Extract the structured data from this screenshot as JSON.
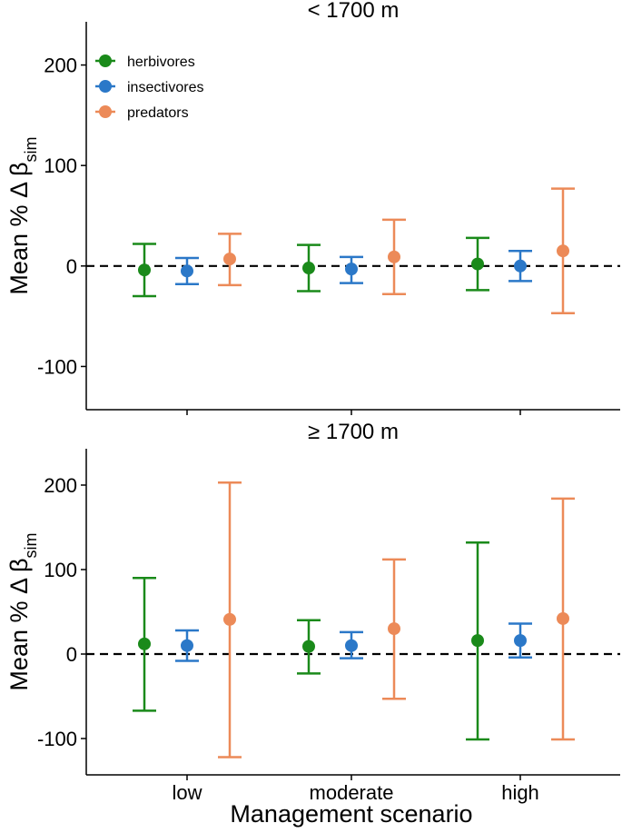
{
  "chart_data": {
    "type": "scatter",
    "subtype": "point-with-error-bars",
    "xlabel": "Management scenario",
    "categories": [
      "low",
      "moderate",
      "high"
    ],
    "reference_line": {
      "y": 0,
      "style": "dashed"
    },
    "legend": {
      "position": "top-left",
      "entries": [
        {
          "name": "herbivores",
          "color": "#1a8a1a"
        },
        {
          "name": "insectivores",
          "color": "#2b78c8"
        },
        {
          "name": "predators",
          "color": "#ec8a58"
        }
      ]
    },
    "panels": [
      {
        "title": "< 1700 m",
        "ylabel_main": "Mean % Δ β",
        "ylabel_sub": "sim",
        "ylim": [
          -143,
          243
        ],
        "yticks": [
          -100,
          0,
          100,
          200
        ],
        "series": [
          {
            "name": "herbivores",
            "color": "#1a8a1a",
            "mean": [
              -4,
              -2,
              2
            ],
            "lower": [
              -30,
              -25,
              -24
            ],
            "upper": [
              22,
              21,
              28
            ]
          },
          {
            "name": "insectivores",
            "color": "#2b78c8",
            "mean": [
              -5,
              -3,
              0
            ],
            "lower": [
              -18,
              -17,
              -15
            ],
            "upper": [
              8,
              9,
              15
            ]
          },
          {
            "name": "predators",
            "color": "#ec8a58",
            "mean": [
              7,
              9,
              15
            ],
            "lower": [
              -19,
              -28,
              -47
            ],
            "upper": [
              32,
              46,
              77
            ]
          }
        ]
      },
      {
        "title": "≥ 1700 m",
        "ylabel_main": "Mean % Δ β",
        "ylabel_sub": "sim",
        "ylim": [
          -143,
          243
        ],
        "yticks": [
          -100,
          0,
          100,
          200
        ],
        "series": [
          {
            "name": "herbivores",
            "color": "#1a8a1a",
            "mean": [
              12,
              9,
              16
            ],
            "lower": [
              -67,
              -23,
              -101
            ],
            "upper": [
              90,
              40,
              132
            ]
          },
          {
            "name": "insectivores",
            "color": "#2b78c8",
            "mean": [
              10,
              10,
              16
            ],
            "lower": [
              -8,
              -5,
              -4
            ],
            "upper": [
              28,
              26,
              36
            ]
          },
          {
            "name": "predators",
            "color": "#ec8a58",
            "mean": [
              41,
              30,
              42
            ],
            "lower": [
              -122,
              -53,
              -101
            ],
            "upper": [
              203,
              112,
              184
            ]
          }
        ]
      }
    ]
  }
}
